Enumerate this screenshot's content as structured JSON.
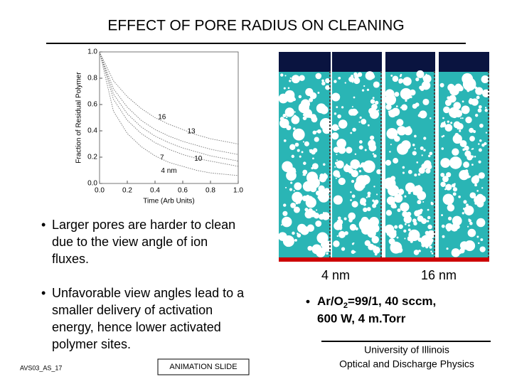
{
  "title": "EFFECT OF PORE RADIUS ON CLEANING",
  "chart": {
    "type": "line",
    "x_label": "Time (Arb Units)",
    "y_label": "Fraction of Residual Polymer",
    "x": [
      0,
      0.1,
      0.2,
      0.3,
      0.4,
      0.5,
      0.6,
      0.7,
      0.8,
      0.9,
      1.0
    ],
    "xlim": [
      0,
      1
    ],
    "ylim": [
      0,
      1
    ],
    "xticks": [
      {
        "value": 0,
        "label": "0.0"
      },
      {
        "value": 0.2,
        "label": "0.2"
      },
      {
        "value": 0.4,
        "label": "0.4"
      },
      {
        "value": 0.6,
        "label": "0.6"
      },
      {
        "value": 0.8,
        "label": "0.8"
      },
      {
        "value": 1,
        "label": "1.0"
      }
    ],
    "yticks": [
      {
        "value": 0,
        "label": "0.0"
      },
      {
        "value": 0.2,
        "label": "0.2"
      },
      {
        "value": 0.4,
        "label": "0.4"
      },
      {
        "value": 0.6,
        "label": "0.6"
      },
      {
        "value": 0.8,
        "label": "0.8"
      },
      {
        "value": 1,
        "label": "1.0"
      }
    ],
    "series": [
      {
        "name": "16",
        "color": "#777777",
        "values": [
          1.0,
          0.78,
          0.66,
          0.57,
          0.5,
          0.45,
          0.41,
          0.37,
          0.34,
          0.32,
          0.3
        ]
      },
      {
        "name": "13",
        "color": "#777777",
        "values": [
          1.0,
          0.72,
          0.58,
          0.48,
          0.41,
          0.36,
          0.32,
          0.29,
          0.26,
          0.24,
          0.22
        ]
      },
      {
        "name": "10",
        "color": "#777777",
        "values": [
          1.0,
          0.68,
          0.53,
          0.43,
          0.36,
          0.31,
          0.27,
          0.24,
          0.21,
          0.19,
          0.17
        ]
      },
      {
        "name": "7",
        "color": "#777777",
        "values": [
          1.0,
          0.64,
          0.48,
          0.38,
          0.31,
          0.26,
          0.22,
          0.19,
          0.17,
          0.15,
          0.13
        ]
      },
      {
        "name": "4 nm",
        "color": "#777777",
        "values": [
          1.0,
          0.55,
          0.38,
          0.28,
          0.21,
          0.16,
          0.13,
          0.1,
          0.08,
          0.07,
          0.06
        ]
      }
    ]
  },
  "image_labels": [
    "4 nm",
    "16 nm"
  ],
  "bullets": [
    [
      "Larger pores are harder to clean",
      "due to the view angle of ion",
      "fluxes."
    ],
    [
      "Unfavorable view angles lead to a",
      "smaller delivery of activation",
      "energy, hence lower activated",
      "polymer sites."
    ]
  ],
  "conditions": {
    "line1": [
      "Ar/O",
      "2",
      "=99/1, 40 sccm,"
    ],
    "line2": "600 W, 4 m.Torr"
  },
  "footer": {
    "code": "AVS03_AS_17",
    "button": "ANIMATION SLIDE",
    "affiliation": [
      "University of Illinois",
      "Optical and Discharge Physics"
    ]
  }
}
